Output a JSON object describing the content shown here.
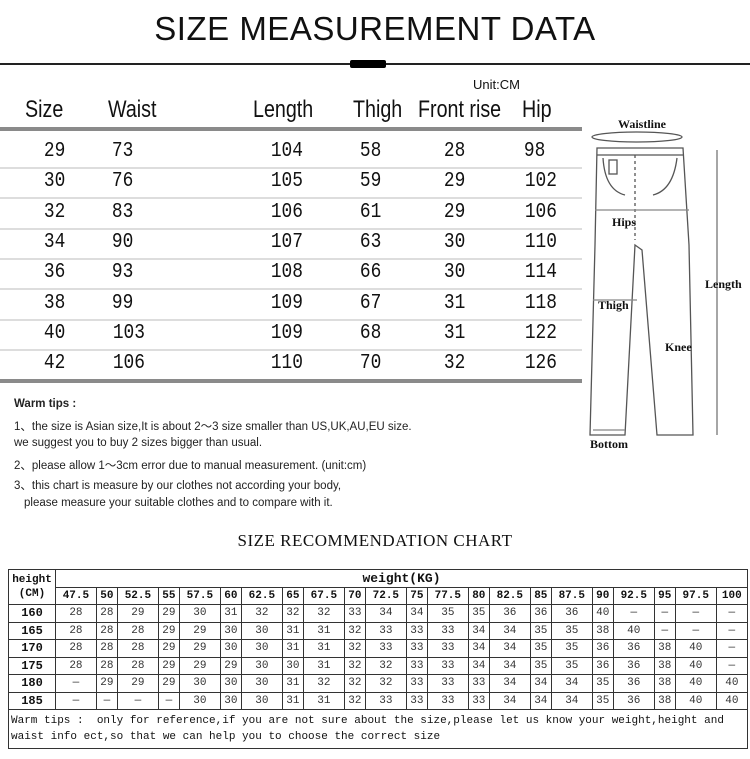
{
  "title": "SIZE MEASUREMENT DATA",
  "unit": "Unit:CM",
  "measure_table": {
    "headers": [
      "Size",
      "Waist",
      "Length",
      "Thigh",
      "Front rise",
      "Hip"
    ],
    "rows": [
      [
        "29",
        "73",
        "104",
        "58",
        "28",
        "98"
      ],
      [
        "30",
        "76",
        "105",
        "59",
        "29",
        "102"
      ],
      [
        "32",
        "83",
        "106",
        "61",
        "29",
        "106"
      ],
      [
        "34",
        "90",
        "107",
        "63",
        "30",
        "110"
      ],
      [
        "36",
        "93",
        "108",
        "66",
        "30",
        "114"
      ],
      [
        "38",
        "99",
        "109",
        "67",
        "31",
        "118"
      ],
      [
        "40",
        "103",
        "109",
        "68",
        "31",
        "122"
      ],
      [
        "42",
        "106",
        "110",
        "70",
        "32",
        "126"
      ]
    ]
  },
  "diagram": {
    "labels": {
      "waistline": "Waistline",
      "hips": "Hips",
      "thigh": "Thigh",
      "knee": "Knee",
      "length": "Length",
      "bottom": "Bottom"
    }
  },
  "warm_tips": {
    "heading": "Warm tips :",
    "lines": [
      "1、the size is Asian size,It is about 2～3 size smaller than US,UK,AU,EU size.",
      "we suggest you to buy 2 sizes bigger than usual.",
      "2、please allow 1～3cm error due to manual measurement. (unit:cm)",
      "3、this chart is measure by our clothes not according your body,",
      "   please measure your suitable clothes and to compare with it."
    ]
  },
  "recommendation": {
    "title": "SIZE RECOMMENDATION  CHART",
    "height_label": "height",
    "height_unit": "(CM)",
    "weight_label": "weight(KG)",
    "weights": [
      "47.5",
      "50",
      "52.5",
      "55",
      "57.5",
      "60",
      "62.5",
      "65",
      "67.5",
      "70",
      "72.5",
      "75",
      "77.5",
      "80",
      "82.5",
      "85",
      "87.5",
      "90",
      "92.5",
      "95",
      "97.5",
      "100"
    ],
    "rows": [
      {
        "height": "160",
        "sizes": [
          "28",
          "28",
          "29",
          "29",
          "30",
          "31",
          "32",
          "32",
          "32",
          "33",
          "34",
          "34",
          "35",
          "35",
          "36",
          "36",
          "36",
          "40",
          "—",
          "—",
          "—",
          "—"
        ]
      },
      {
        "height": "165",
        "sizes": [
          "28",
          "28",
          "28",
          "29",
          "29",
          "30",
          "30",
          "31",
          "31",
          "32",
          "33",
          "33",
          "33",
          "34",
          "34",
          "35",
          "35",
          "38",
          "40",
          "—",
          "—",
          "—"
        ]
      },
      {
        "height": "170",
        "sizes": [
          "28",
          "28",
          "28",
          "29",
          "29",
          "30",
          "30",
          "31",
          "31",
          "32",
          "33",
          "33",
          "33",
          "34",
          "34",
          "35",
          "35",
          "36",
          "36",
          "38",
          "40",
          "—"
        ]
      },
      {
        "height": "175",
        "sizes": [
          "28",
          "28",
          "28",
          "29",
          "29",
          "29",
          "30",
          "30",
          "31",
          "32",
          "32",
          "33",
          "33",
          "34",
          "34",
          "35",
          "35",
          "36",
          "36",
          "38",
          "40",
          "—"
        ]
      },
      {
        "height": "180",
        "sizes": [
          "—",
          "29",
          "29",
          "29",
          "30",
          "30",
          "30",
          "31",
          "32",
          "32",
          "32",
          "33",
          "33",
          "33",
          "34",
          "34",
          "34",
          "35",
          "36",
          "38",
          "40",
          "40"
        ]
      },
      {
        "height": "185",
        "sizes": [
          "—",
          "—",
          "—",
          "—",
          "30",
          "30",
          "30",
          "31",
          "31",
          "32",
          "33",
          "33",
          "33",
          "33",
          "34",
          "34",
          "34",
          "35",
          "36",
          "38",
          "40",
          "40"
        ]
      }
    ],
    "note_line1": "Warm tips :  only for reference,if you are not sure about the size,please let us know your weight,height and",
    "note_line2": "waist info ect,so that we can help you to choose the correct size"
  }
}
